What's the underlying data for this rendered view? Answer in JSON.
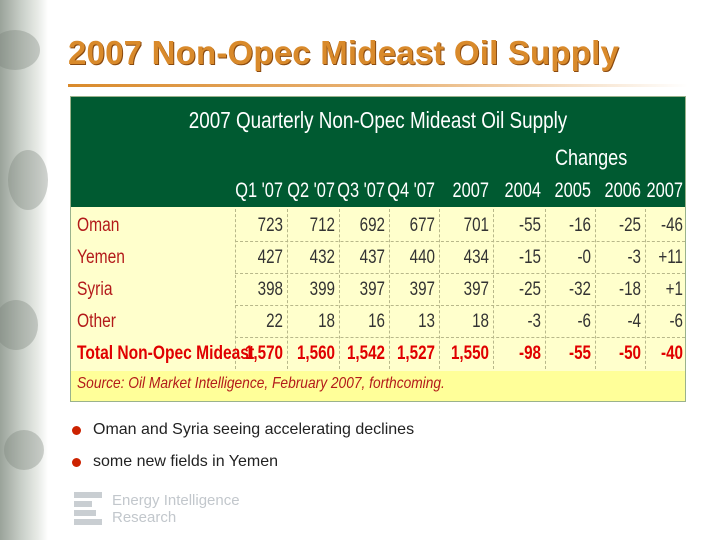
{
  "slide": {
    "title": "2007 Non-Opec Mideast Oil Supply"
  },
  "table": {
    "title": "2007 Quarterly Non-Opec Mideast Oil Supply",
    "changes_label": "Changes",
    "columns": [
      "Q1 '07",
      "Q2 '07",
      "Q3 '07",
      "Q4 '07",
      "2007",
      "2004",
      "2005",
      "2006",
      "2007"
    ],
    "rows": [
      {
        "label": "Oman",
        "values": [
          "723",
          "712",
          "692",
          "677",
          "701",
          "-55",
          "-16",
          "-25",
          "-46"
        ]
      },
      {
        "label": "Yemen",
        "values": [
          "427",
          "432",
          "437",
          "440",
          "434",
          "-15",
          "-0",
          "-3",
          "+11"
        ]
      },
      {
        "label": "Syria",
        "values": [
          "398",
          "399",
          "397",
          "397",
          "397",
          "-25",
          "-32",
          "-18",
          "+1"
        ]
      },
      {
        "label": "Other",
        "values": [
          "22",
          "18",
          "16",
          "13",
          "18",
          "-3",
          "-6",
          "-4",
          "-6"
        ]
      },
      {
        "label": "Total Non-Opec Mideast",
        "values": [
          "1,570",
          "1,560",
          "1,542",
          "1,527",
          "1,550",
          "-98",
          "-55",
          "-50",
          "-40"
        ],
        "total": true
      }
    ],
    "source": "Source: Oil Market Intelligence, February 2007, forthcoming.",
    "colors": {
      "header": "#005a31",
      "body": "#ffffcc",
      "accent_text": "#b31a1a",
      "total_text": "#e00000"
    }
  },
  "bullets": [
    "Oman and Syria seeing accelerating declines",
    "some new fields in Yemen"
  ],
  "footer": {
    "logo_line1": "Energy Intelligence",
    "logo_line2": "Research"
  },
  "theme": {
    "title_color": "#d98a2b"
  }
}
